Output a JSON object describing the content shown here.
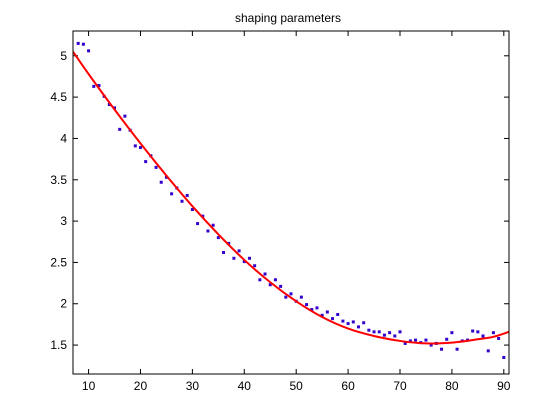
{
  "chart_data": {
    "type": "scatter",
    "title": "shaping parameters",
    "xlabel": "",
    "ylabel": "",
    "xlim": [
      7,
      91
    ],
    "ylim": [
      1.15,
      5.3
    ],
    "xticks": [
      10,
      20,
      30,
      40,
      50,
      60,
      70,
      80,
      90
    ],
    "yticks": [
      1.5,
      2,
      2.5,
      3,
      3.5,
      4,
      4.5,
      5
    ],
    "ytick_labels": [
      "1.5",
      "2",
      "2.5",
      "3",
      "3.5",
      "4",
      "4.5",
      "5"
    ],
    "grid": false,
    "colors": {
      "points": "#3300cc",
      "fit": "#ff0000",
      "axes": "#000000"
    },
    "series": [
      {
        "kind": "points",
        "x": [
          8,
          9,
          10,
          11,
          12,
          13,
          14,
          15,
          16,
          17,
          18,
          19,
          20,
          21,
          22,
          23,
          24,
          25,
          26,
          27,
          28,
          29,
          30,
          31,
          32,
          33,
          34,
          35,
          36,
          37,
          38,
          39,
          40,
          41,
          42,
          43,
          44,
          45,
          46,
          47,
          48,
          49,
          50,
          51,
          52,
          53,
          54,
          55,
          56,
          57,
          58,
          59,
          60,
          61,
          62,
          63,
          64,
          65,
          66,
          67,
          68,
          69,
          70,
          71,
          72,
          73,
          74,
          75,
          76,
          77,
          78,
          79,
          80,
          81,
          82,
          83,
          84,
          85,
          86,
          87,
          88,
          89,
          90
        ],
        "y": [
          5.15,
          5.14,
          5.06,
          4.63,
          4.64,
          4.51,
          4.41,
          4.37,
          4.11,
          4.27,
          4.1,
          3.91,
          3.89,
          3.72,
          3.79,
          3.65,
          3.47,
          3.53,
          3.33,
          3.4,
          3.24,
          3.31,
          3.14,
          2.97,
          3.06,
          2.88,
          2.95,
          2.8,
          2.62,
          2.73,
          2.55,
          2.64,
          2.51,
          2.55,
          2.46,
          2.29,
          2.36,
          2.23,
          2.29,
          2.21,
          2.08,
          2.12,
          2.03,
          2.08,
          1.99,
          1.93,
          1.95,
          1.86,
          1.9,
          1.82,
          1.87,
          1.79,
          1.76,
          1.78,
          1.72,
          1.77,
          1.68,
          1.66,
          1.66,
          1.62,
          1.65,
          1.61,
          1.66,
          1.52,
          1.55,
          1.56,
          1.53,
          1.56,
          1.5,
          1.52,
          1.45,
          1.57,
          1.65,
          1.45,
          1.55,
          1.56,
          1.67,
          1.66,
          1.61,
          1.43,
          1.65,
          1.58,
          1.35
        ]
      },
      {
        "kind": "fit",
        "x": [
          7,
          10,
          15,
          20,
          25,
          30,
          35,
          40,
          45,
          50,
          55,
          60,
          65,
          70,
          75,
          80,
          85,
          88,
          91
        ],
        "y": [
          5.05,
          4.78,
          4.35,
          3.94,
          3.55,
          3.18,
          2.84,
          2.53,
          2.26,
          2.03,
          1.84,
          1.7,
          1.61,
          1.55,
          1.52,
          1.53,
          1.57,
          1.6,
          1.66
        ]
      }
    ]
  }
}
